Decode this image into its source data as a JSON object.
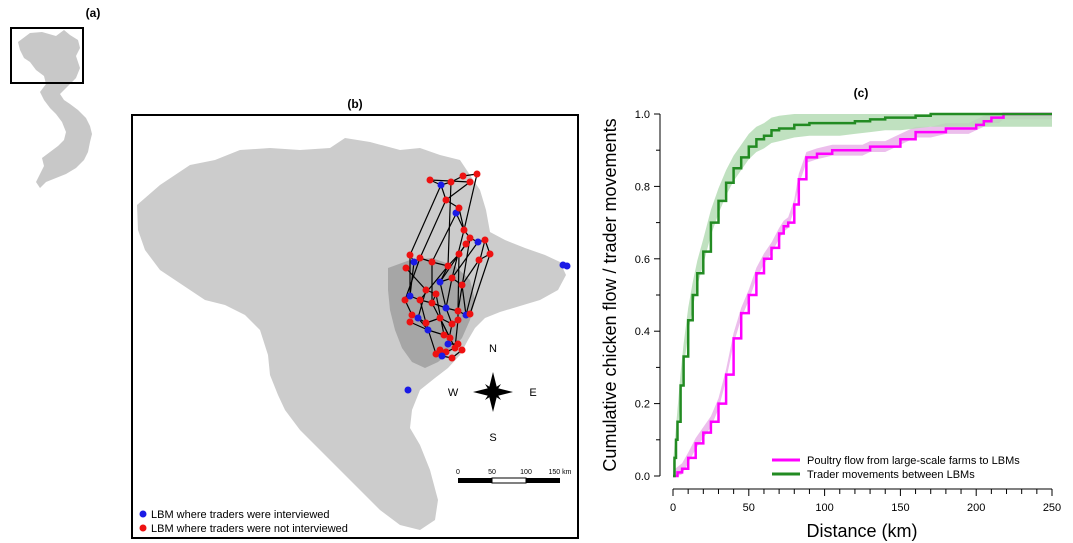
{
  "panel_labels": {
    "a": "(a)",
    "b": "(b)",
    "c": "(c)"
  },
  "map": {
    "legend": [
      {
        "label": "LBM where traders were interviewed",
        "color": "#1a1ae6"
      },
      {
        "label": "LBM where traders were not interviewed",
        "color": "#ee1111"
      }
    ],
    "compass": {
      "n": "N",
      "s": "S",
      "e": "E",
      "w": "W"
    },
    "scale_bar": {
      "ticks": [
        "0",
        "50",
        "100",
        "150 km"
      ]
    },
    "colors": {
      "land": "#cccccc",
      "delta": "#a6a6a6",
      "edge": "#000000"
    }
  },
  "chart_data": {
    "type": "line",
    "title": "",
    "xlabel": "Distance (km)",
    "ylabel": "Cumulative chicken flow / trader movements",
    "xlim": [
      0,
      250
    ],
    "ylim": [
      0,
      1
    ],
    "x_ticks": [
      "0",
      "50",
      "100",
      "150",
      "200",
      "250"
    ],
    "y_ticks": [
      "0.0",
      "0.2",
      "0.4",
      "0.6",
      "0.8",
      "1.0"
    ],
    "grid": false,
    "legend_position": "bottom-right",
    "series": [
      {
        "name": "Poultry flow from large-scale farms to LBMs",
        "color": "#ff00ff",
        "band_color": "#e9b3e9",
        "x": [
          0,
          3,
          6,
          10,
          15,
          20,
          25,
          30,
          35,
          40,
          45,
          50,
          55,
          60,
          65,
          70,
          73,
          76,
          80,
          83,
          88,
          95,
          105,
          115,
          125,
          130,
          140,
          150,
          160,
          170,
          180,
          190,
          195,
          200,
          205,
          210,
          215,
          218,
          220,
          250
        ],
        "y": [
          0.0,
          0.01,
          0.02,
          0.05,
          0.09,
          0.12,
          0.15,
          0.2,
          0.28,
          0.38,
          0.45,
          0.5,
          0.56,
          0.6,
          0.63,
          0.67,
          0.69,
          0.7,
          0.75,
          0.82,
          0.88,
          0.89,
          0.9,
          0.9,
          0.9,
          0.91,
          0.91,
          0.93,
          0.95,
          0.95,
          0.96,
          0.96,
          0.96,
          0.97,
          0.98,
          0.99,
          0.99,
          1.0,
          1.0,
          1.0
        ]
      },
      {
        "name": "Trader movements between LBMs",
        "color": "#228b22",
        "band_color": "#b5dcb5",
        "x": [
          0,
          1,
          2,
          3,
          5,
          7,
          10,
          13,
          16,
          20,
          25,
          30,
          35,
          40,
          45,
          50,
          55,
          60,
          65,
          70,
          80,
          90,
          100,
          110,
          120,
          130,
          140,
          150,
          160,
          170,
          180,
          200,
          220,
          250
        ],
        "y": [
          0.0,
          0.05,
          0.1,
          0.15,
          0.25,
          0.33,
          0.43,
          0.5,
          0.56,
          0.62,
          0.7,
          0.76,
          0.81,
          0.85,
          0.88,
          0.91,
          0.93,
          0.94,
          0.955,
          0.96,
          0.97,
          0.975,
          0.975,
          0.975,
          0.98,
          0.985,
          0.99,
          0.99,
          0.995,
          1.0,
          1.0,
          1.0,
          1.0,
          1.0
        ]
      }
    ]
  }
}
